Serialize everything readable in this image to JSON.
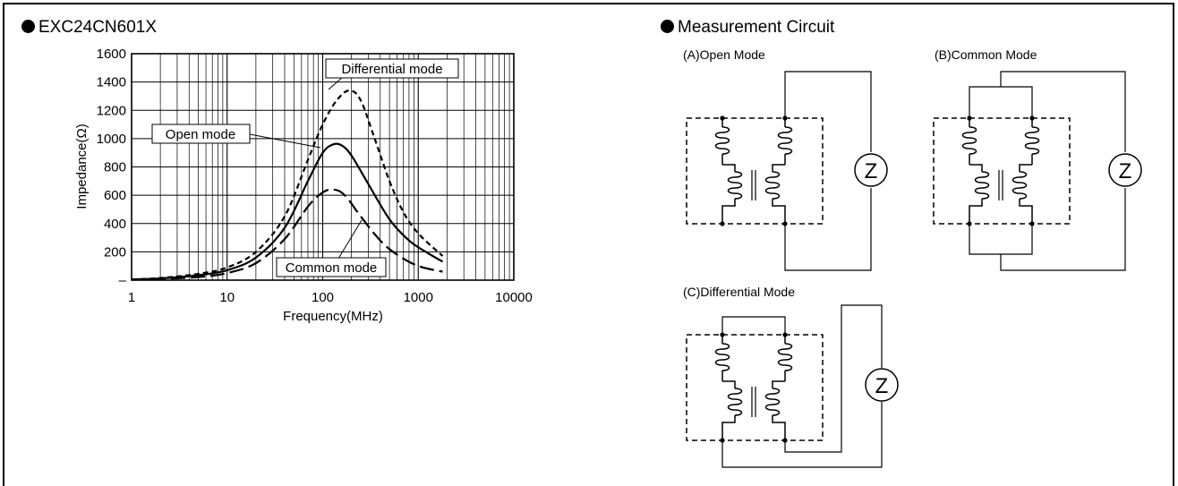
{
  "left_panel": {
    "title": "EXC24CN601X"
  },
  "right_panel": {
    "title": "Measurement Circuit",
    "circuits": [
      {
        "label": "(A)Open Mode",
        "meter": "Z"
      },
      {
        "label": "(B)Common Mode",
        "meter": "Z"
      },
      {
        "label": "(C)Differential Mode",
        "meter": "Z"
      }
    ]
  },
  "chart_data": {
    "type": "line",
    "xlabel": "Frequency(MHz)",
    "ylabel": "Impedance(Ω)",
    "x_scale": "log",
    "xlim": [
      1,
      10000
    ],
    "ylim": [
      0,
      1600
    ],
    "x_ticks": [
      "1",
      "10",
      "100",
      "1000",
      "10000"
    ],
    "y_ticks": [
      "1600",
      "1400",
      "1200",
      "1000",
      "800",
      "600",
      "400",
      "200",
      "–"
    ],
    "grid": true,
    "series": [
      {
        "name": "Differential mode",
        "line_style": "short-dash",
        "x": [
          1,
          2,
          5,
          10,
          20,
          40,
          70,
          100,
          140,
          190,
          250,
          350,
          500,
          700,
          1000,
          1800
        ],
        "y": [
          5,
          15,
          45,
          90,
          200,
          450,
          850,
          1100,
          1270,
          1340,
          1270,
          1000,
          700,
          480,
          330,
          170
        ]
      },
      {
        "name": "Open mode",
        "line_style": "solid",
        "x": [
          1,
          2,
          5,
          10,
          20,
          40,
          70,
          100,
          130,
          160,
          200,
          300,
          500,
          800,
          1200,
          1800
        ],
        "y": [
          5,
          12,
          35,
          70,
          160,
          370,
          700,
          900,
          960,
          950,
          880,
          680,
          430,
          280,
          200,
          130
        ]
      },
      {
        "name": "Common mode",
        "line_style": "long-dash",
        "x": [
          1,
          2,
          5,
          10,
          20,
          40,
          70,
          100,
          130,
          170,
          250,
          400,
          600,
          1000,
          1800
        ],
        "y": [
          3,
          8,
          22,
          50,
          120,
          290,
          520,
          620,
          640,
          600,
          450,
          280,
          180,
          100,
          60
        ]
      }
    ]
  }
}
